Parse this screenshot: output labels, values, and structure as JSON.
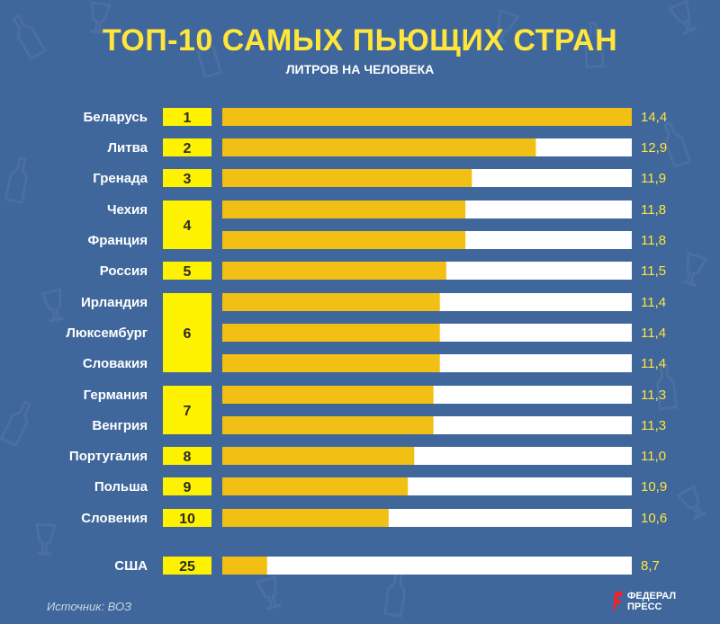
{
  "title": "ТОП-10 САМЫХ ПЬЮЩИХ СТРАН",
  "subtitle": "ЛИТРОВ НА ЧЕЛОВЕКА",
  "source": "Источник: ВОЗ",
  "logo": {
    "line1": "ФЕДЕРАЛ",
    "line2": "ПРЕСС",
    "icon": "fp-logo-icon"
  },
  "colors": {
    "background": "#3f679b",
    "title": "#ffe53c",
    "bar_fill": "#f2bf14",
    "bar_track": "#ffffff",
    "rank_box": "#fff200",
    "value_text": "#ffe53c"
  },
  "chart_data": {
    "type": "bar",
    "orientation": "horizontal",
    "title": "ТОП-10 САМЫХ ПЬЮЩИХ СТРАН",
    "subtitle": "ЛИТРОВ НА ЧЕЛОВЕКА",
    "categories": [
      "Беларусь",
      "Литва",
      "Гренада",
      "Чехия",
      "Франция",
      "Россия",
      "Ирландия",
      "Люксембург",
      "Словакия",
      "Германия",
      "Венгрия",
      "Португалия",
      "Польша",
      "Словения",
      "США"
    ],
    "values": [
      14.4,
      12.9,
      11.9,
      11.8,
      11.8,
      11.5,
      11.4,
      11.4,
      11.4,
      11.3,
      11.3,
      11.0,
      10.9,
      10.6,
      8.7
    ],
    "value_labels": [
      "14,4",
      "12,9",
      "11,9",
      "11,8",
      "11,8",
      "11,5",
      "11,4",
      "11,4",
      "11,4",
      "11,3",
      "11,3",
      "11,0",
      "10,9",
      "10,6",
      "8,7"
    ],
    "ranks": [
      {
        "label": "1",
        "rows": [
          0
        ]
      },
      {
        "label": "2",
        "rows": [
          1
        ]
      },
      {
        "label": "3",
        "rows": [
          2
        ]
      },
      {
        "label": "4",
        "rows": [
          3,
          4
        ]
      },
      {
        "label": "5",
        "rows": [
          5
        ]
      },
      {
        "label": "6",
        "rows": [
          6,
          7,
          8
        ]
      },
      {
        "label": "7",
        "rows": [
          9,
          10
        ]
      },
      {
        "label": "8",
        "rows": [
          11
        ]
      },
      {
        "label": "9",
        "rows": [
          12
        ]
      },
      {
        "label": "10",
        "rows": [
          13
        ]
      },
      {
        "label": "25",
        "rows": [
          14
        ]
      }
    ],
    "xlim": [
      8.0,
      14.4
    ],
    "grid": false,
    "legend": "none"
  }
}
